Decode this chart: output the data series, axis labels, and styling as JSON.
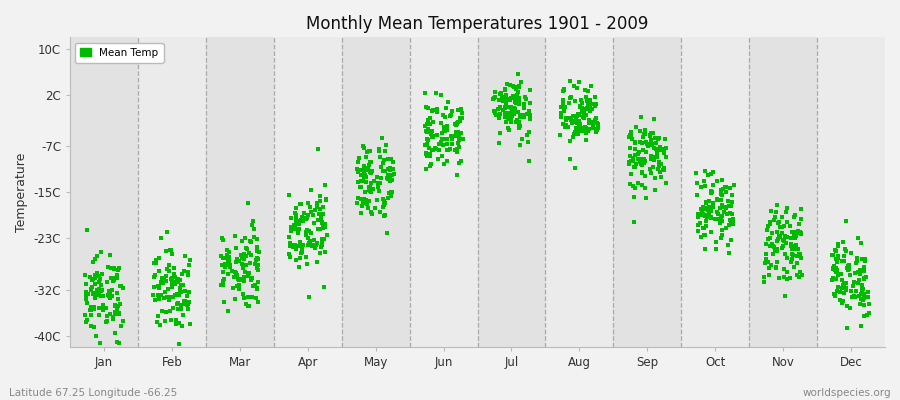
{
  "title": "Monthly Mean Temperatures 1901 - 2009",
  "ylabel": "Temperature",
  "xlabel_labels": [
    "Jan",
    "Feb",
    "Mar",
    "Apr",
    "May",
    "Jun",
    "Jul",
    "Aug",
    "Sep",
    "Oct",
    "Nov",
    "Dec"
  ],
  "subtitle_left": "Latitude 67.25 Longitude -66.25",
  "subtitle_right": "worldspecies.org",
  "legend_label": "Mean Temp",
  "dot_color": "#00bb00",
  "background_color": "#f2f2f2",
  "plot_bg_color_light": "#ebebeb",
  "plot_bg_color_dark": "#e2e2e2",
  "ytick_labels": [
    "10C",
    "2C",
    "-7C",
    "-15C",
    "-23C",
    "-32C",
    "-40C"
  ],
  "ytick_values": [
    10,
    2,
    -7,
    -15,
    -23,
    -32,
    -40
  ],
  "ylim": [
    -42,
    12
  ],
  "num_years": 109,
  "monthly_means": [
    -33,
    -32,
    -28,
    -21,
    -13,
    -5,
    0,
    -2,
    -9,
    -18,
    -24,
    -30
  ],
  "monthly_stds": [
    3.5,
    3.5,
    3.5,
    3.5,
    3.5,
    3.0,
    2.8,
    2.8,
    3.0,
    3.0,
    3.0,
    3.5
  ],
  "month_x_centers": [
    0.5,
    1.5,
    2.5,
    3.5,
    4.5,
    5.5,
    6.5,
    7.5,
    8.5,
    9.5,
    10.5,
    11.5
  ],
  "dashed_line_positions": [
    1,
    2,
    3,
    4,
    5,
    6,
    7,
    8,
    9,
    10,
    11
  ],
  "xlim": [
    0,
    12
  ],
  "marker_size": 2.5,
  "jitter": 0.28
}
